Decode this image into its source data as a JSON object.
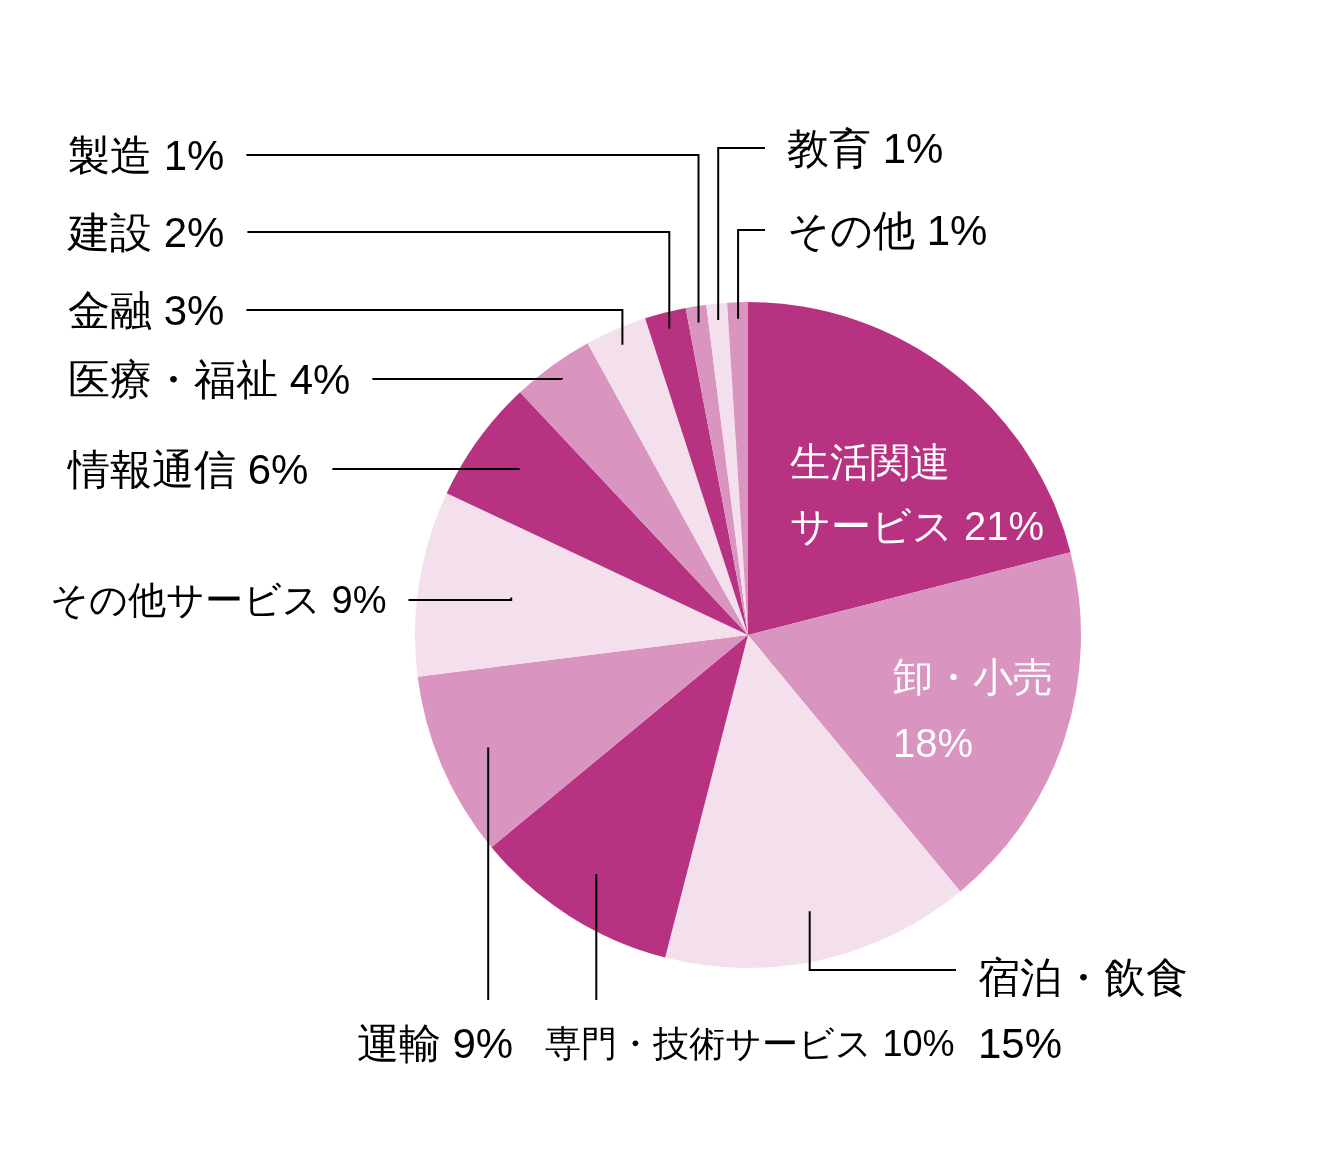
{
  "chart_data": {
    "type": "pie",
    "categories": [
      "生活関連サービス",
      "卸・小売",
      "宿泊・飲食",
      "専門・技術サービス",
      "運輸",
      "その他サービス",
      "情報通信",
      "医療・福祉",
      "金融",
      "建設",
      "製造",
      "教育",
      "その他"
    ],
    "values": [
      21,
      18,
      15,
      10,
      9,
      9,
      6,
      4,
      3,
      2,
      1,
      1,
      1
    ],
    "colors": [
      "#b83282",
      "#d994c0",
      "#f4e0ec",
      "#b83282",
      "#d994c0",
      "#f4e0ec",
      "#b83282",
      "#d994c0",
      "#f4e0ec",
      "#b83282",
      "#d994c0",
      "#f4e0ec",
      "#d994c0"
    ],
    "value_labels": [
      "21%",
      "18%",
      "15%",
      "10%",
      "9%",
      "9%",
      "6%",
      "4%",
      "3%",
      "2%",
      "1%",
      "1%",
      "1%"
    ]
  }
}
